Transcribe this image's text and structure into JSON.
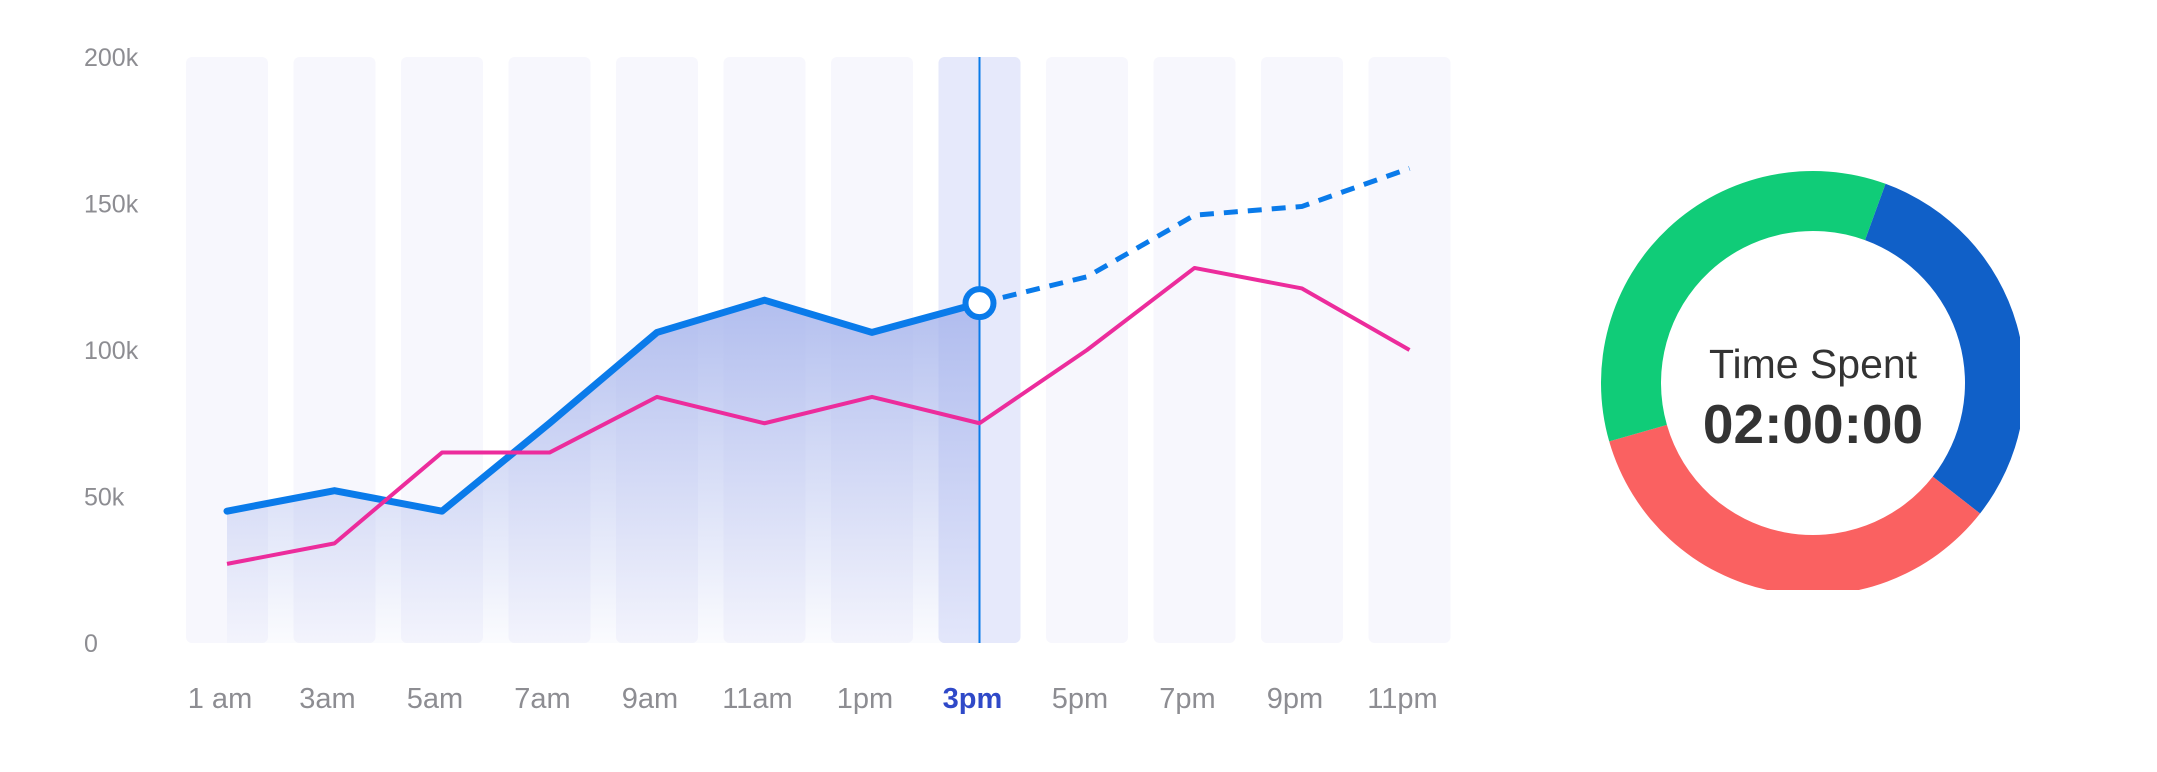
{
  "chart_data": [
    {
      "type": "line",
      "categories": [
        "1 am",
        "3am",
        "5am",
        "7am",
        "9am",
        "11am",
        "1pm",
        "3pm",
        "5pm",
        "7pm",
        "9pm",
        "11pm"
      ],
      "y_ticks": [
        "0",
        "50k",
        "100k",
        "150k",
        "200k"
      ],
      "ylim": [
        0,
        200000
      ],
      "highlighted_category": "3pm",
      "series": [
        {
          "color": "#0a7bea",
          "style": "solid-then-dashed",
          "area_fill": true,
          "values": [
            45000,
            52000,
            45000,
            75000,
            106000,
            117000,
            106000,
            116000,
            125000,
            146000,
            149000,
            162000
          ]
        },
        {
          "color": "#ec2c9c",
          "style": "solid",
          "area_fill": false,
          "values": [
            27000,
            34000,
            65000,
            65000,
            84000,
            75000,
            84000,
            75000,
            100000,
            128000,
            121000,
            100000
          ]
        }
      ],
      "colors": {
        "column_band": "#f7f7fd",
        "column_band_active": "#e6e9fb",
        "area_top": "#a6b4ec",
        "marker_fill": "#ffffff"
      }
    },
    {
      "type": "pie",
      "donut": true,
      "label": "Time Spent",
      "value": "02:00:00",
      "slices": [
        {
          "color": "#1060c8",
          "value": 30
        },
        {
          "color": "#fa6161",
          "value": 35
        },
        {
          "color": "#10cc78",
          "value": 35
        }
      ]
    }
  ]
}
